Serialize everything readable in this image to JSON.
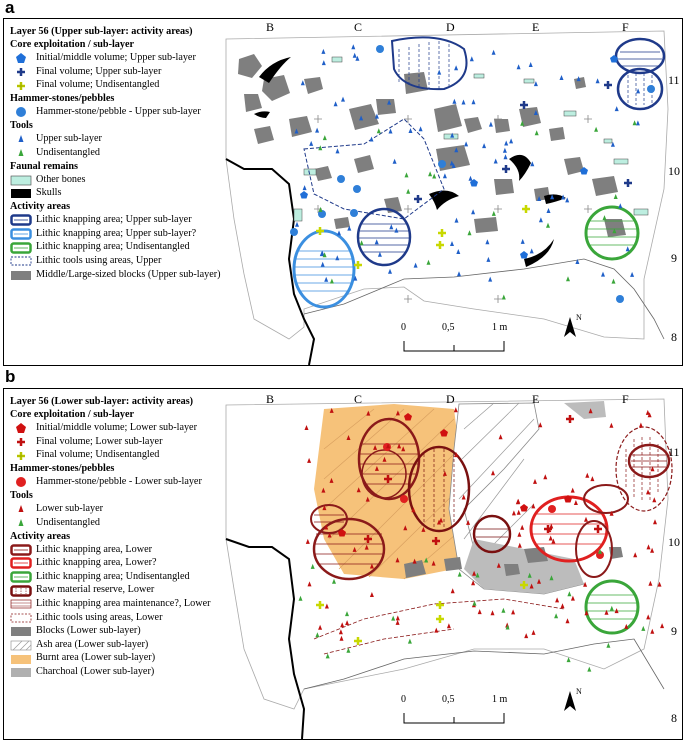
{
  "panel_a": {
    "letter": "a",
    "title": "Layer 56 (Upper sub-layer: activity areas)",
    "sections": [
      {
        "header": "Core exploitation / sub-layer",
        "items": [
          {
            "label": "Initial/middle volume; Upper sub-layer",
            "icon": "blue-pentagon-icon"
          },
          {
            "label": "Final volume; Upper sub-layer",
            "icon": "blue-cross-icon"
          },
          {
            "label": "Final volume; Undisentangled",
            "icon": "yellow-cross-icon"
          }
        ]
      },
      {
        "header": "Hammer-stones/pebbles",
        "items": [
          {
            "label": "Hammer-stone/pebble - Upper sub-layer",
            "icon": "blue-dot-icon"
          }
        ]
      },
      {
        "header": "Tools",
        "items": [
          {
            "label": "Upper sub-layer",
            "icon": "blue-triangle-icon"
          },
          {
            "label": "Undisentangled",
            "icon": "green-triangle-icon"
          }
        ]
      },
      {
        "header": "Faunal remains",
        "items": [
          {
            "label": "Other bones",
            "icon": "bone-icon"
          },
          {
            "label": "Skulls",
            "icon": "skull-icon"
          }
        ]
      },
      {
        "header": "Activity areas",
        "items": [
          {
            "label": "Lithic knapping area; Upper sub-layer",
            "icon": "navy-area-icon"
          },
          {
            "label": "Lithic knapping area; Upper sub-layer?",
            "icon": "lightblue-area-icon"
          },
          {
            "label": "Lithic knapping area; Undisentangled",
            "icon": "green-area-icon"
          },
          {
            "label": "Lithic tools using areas, Upper",
            "icon": "dashed-area-icon"
          },
          {
            "label": "Middle/Large-sized blocks (Upper sub-layer)",
            "icon": "block-icon"
          }
        ]
      }
    ],
    "columns": [
      "B",
      "C",
      "D",
      "E",
      "F"
    ],
    "rows": [
      "11",
      "10",
      "9",
      "8"
    ],
    "scale": [
      "0",
      "0,5",
      "1 m"
    ],
    "north": "N"
  },
  "panel_b": {
    "letter": "b",
    "title": "Layer 56 (Lower sub-layer: activity areas)",
    "sections": [
      {
        "header": "Core exploitation / sub-layer",
        "items": [
          {
            "label": "Initial/middle volume; Lower sub-layer",
            "icon": "red-pentagon-icon"
          },
          {
            "label": "Final volume; Lower sub-layer",
            "icon": "red-cross-icon"
          },
          {
            "label": "Final volume; Undisentangled",
            "icon": "yellow-cross-icon"
          }
        ]
      },
      {
        "header": "Hammer-stones/pebbles",
        "items": [
          {
            "label": "Hammer-stone/pebble - Lower sub-layer",
            "icon": "red-dot-icon"
          }
        ]
      },
      {
        "header": "Tools",
        "items": [
          {
            "label": "Lower sub-layer",
            "icon": "red-triangle-icon"
          },
          {
            "label": "Undisentangled",
            "icon": "green-triangle-icon"
          }
        ]
      },
      {
        "header": "Activity areas",
        "items": [
          {
            "label": "Lithic knapping area, Lower",
            "icon": "darkred-area-icon"
          },
          {
            "label": "Lithic knapping area, Lower?",
            "icon": "red-area-icon"
          },
          {
            "label": "Lithic knapping area; Undisentangled",
            "icon": "green-area-icon"
          },
          {
            "label": "Raw material reserve, Lower",
            "icon": "maroon-area-icon"
          },
          {
            "label": "Lithic knapping area maintenance?, Lower",
            "icon": "hatched-red-icon"
          },
          {
            "label": "Lithic tools using areas, Lower",
            "icon": "dashed-red-icon"
          },
          {
            "label": "Blocks (Lower sub-layer)",
            "icon": "block-icon"
          },
          {
            "label": "Ash area (Lower sub-layer)",
            "icon": "ash-icon"
          },
          {
            "label": "Burnt area (Lower sub-layer)",
            "icon": "burnt-icon"
          },
          {
            "label": "Charchoal (Lower sub-layer)",
            "icon": "charcoal-icon"
          }
        ]
      }
    ],
    "columns": [
      "B",
      "C",
      "D",
      "E",
      "F"
    ],
    "rows": [
      "11",
      "10",
      "9",
      "8"
    ],
    "scale": [
      "0",
      "0,5",
      "1 m"
    ],
    "north": "N"
  },
  "colors": {
    "navy": "#1f3a8a",
    "lightblue": "#3b8fe0",
    "green": "#3aa63a",
    "darkred": "#8b1a1a",
    "red": "#e02020",
    "burnt": "#f6c27a",
    "block": "#7f7f7f",
    "ash": "#b0b0b0",
    "bone": "#bdeee0"
  }
}
